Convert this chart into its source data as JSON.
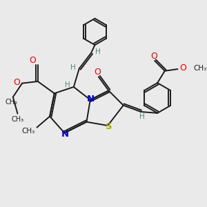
{
  "bg_color": "#eaeaea",
  "bond_color": "#1a1a1a",
  "N_color": "#0000cc",
  "S_color": "#aaaa00",
  "O_color": "#dd0000",
  "C_color": "#1a1a1a",
  "H_color": "#4a8a7a",
  "lw": 1.4,
  "dbo": 0.1,
  "xlim": [
    0,
    10
  ],
  "ylim": [
    0,
    10
  ]
}
